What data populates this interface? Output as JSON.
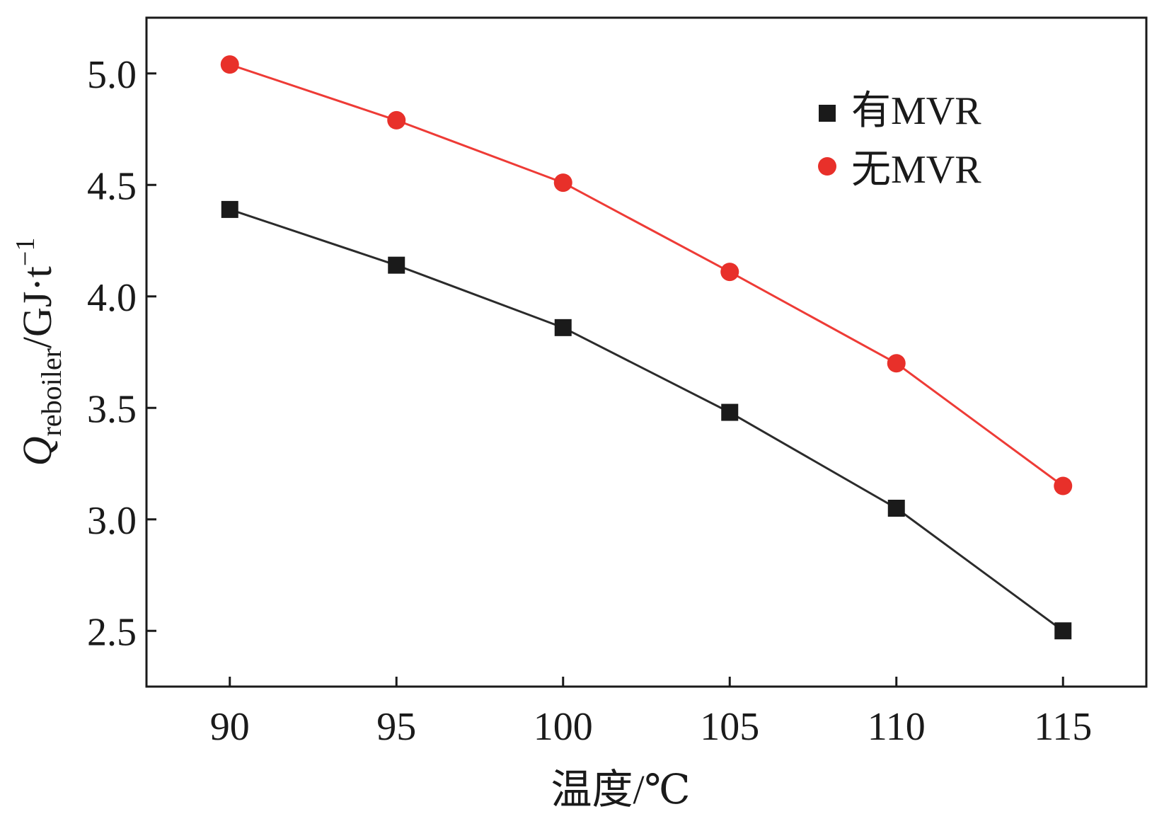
{
  "chart_data": {
    "type": "line",
    "x": [
      90,
      95,
      100,
      105,
      110,
      115
    ],
    "xlim": [
      87.5,
      117.5
    ],
    "ylim": [
      2.25,
      5.25
    ],
    "xticks": [
      90,
      95,
      100,
      105,
      110,
      115
    ],
    "yticks": [
      2.5,
      3.0,
      3.5,
      4.0,
      4.5,
      5.0
    ],
    "xtick_labels": [
      "90",
      "95",
      "100",
      "105",
      "110",
      "115"
    ],
    "ytick_labels": [
      "2.5",
      "3.0",
      "3.5",
      "4.0",
      "4.5",
      "5.0"
    ],
    "xlabel": "温度/℃",
    "ylabel": {
      "main": "Q",
      "subscript": "reboiler",
      "unit": "/GJ·t",
      "superscript": "−1"
    },
    "legend_position": "top-right",
    "grid": false,
    "series": [
      {
        "name": "有MVR",
        "marker": "square",
        "color": "#1a1a1a",
        "values": [
          4.39,
          4.14,
          3.86,
          3.48,
          3.05,
          2.5
        ]
      },
      {
        "name": "无MVR",
        "marker": "circle",
        "color": "#e8302a",
        "values": [
          5.04,
          4.79,
          4.51,
          4.11,
          3.7,
          3.15
        ]
      }
    ]
  }
}
